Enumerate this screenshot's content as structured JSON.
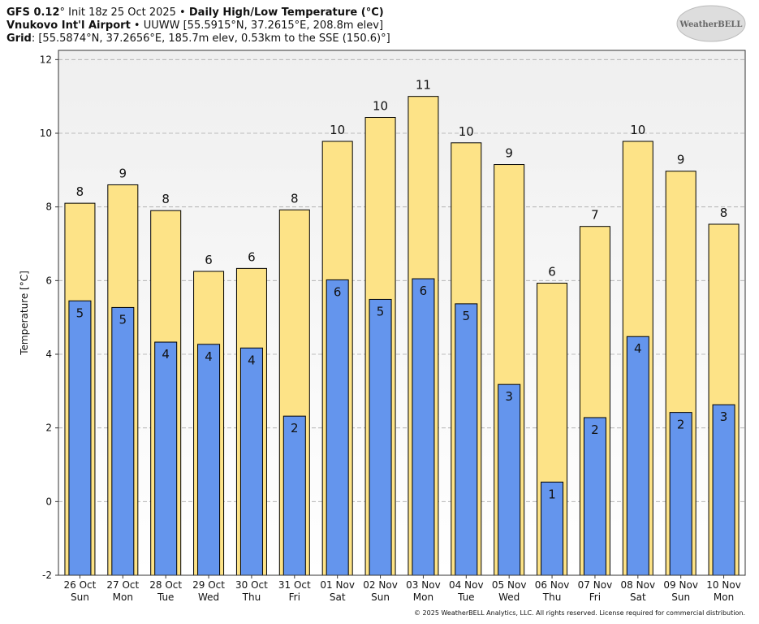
{
  "chart_data": {
    "type": "bar",
    "title_lines": [
      [
        "GFS 0.12",
        "° Init 18z 25 Oct 2025 • ",
        "Daily High/Low Temperature (°C)"
      ],
      [
        "Vnukovo Int'l Airport",
        " • UUWW [55.5915°N, 37.2615°E, 208.8m elev]"
      ],
      [
        "Grid",
        ": [55.5874°N, 37.2656°E, 185.7m elev, 0.53km to the SSE (150.6)°]"
      ]
    ],
    "y_label": "Temperature [°C]",
    "logo": "WeatherBELL",
    "copyright": "© 2025 WeatherBELL Analytics, LLC. All rights reserved. License required for commercial distribution.",
    "categories": [
      "26 Oct",
      "27 Oct",
      "28 Oct",
      "29 Oct",
      "30 Oct",
      "31 Oct",
      "01 Nov",
      "02 Nov",
      "03 Nov",
      "04 Nov",
      "05 Nov",
      "06 Nov",
      "07 Nov",
      "08 Nov",
      "09 Nov",
      "10 Nov"
    ],
    "weekdays": [
      "Sun",
      "Mon",
      "Tue",
      "Wed",
      "Thu",
      "Fri",
      "Sat",
      "Sun",
      "Mon",
      "Tue",
      "Wed",
      "Thu",
      "Fri",
      "Sat",
      "Sun",
      "Mon"
    ],
    "series": [
      {
        "color": "#fde387",
        "values": [
          8.1,
          8.6,
          7.9,
          6.25,
          6.33,
          7.92,
          9.78,
          10.43,
          11.0,
          9.74,
          9.15,
          5.93,
          7.47,
          9.78,
          8.97,
          7.53
        ],
        "value_labels": [
          "8",
          "9",
          "8",
          "6",
          "6",
          "8",
          "10",
          "10",
          "11",
          "10",
          "9",
          "6",
          "7",
          "10",
          "9",
          "8"
        ]
      },
      {
        "color": "#6495ed",
        "values": [
          5.45,
          5.27,
          4.33,
          4.27,
          4.17,
          2.32,
          6.02,
          5.49,
          6.05,
          5.37,
          3.18,
          0.53,
          2.28,
          4.48,
          2.42,
          2.63
        ],
        "value_labels": [
          "5",
          "5",
          "4",
          "4",
          "4",
          "2",
          "6",
          "5",
          "6",
          "5",
          "3",
          "1",
          "2",
          "4",
          "2",
          "3"
        ]
      }
    ],
    "ylim": [
      -2,
      12.25
    ],
    "yticks": [
      -2,
      0,
      2,
      4,
      6,
      8,
      10,
      12
    ],
    "grid": true
  }
}
